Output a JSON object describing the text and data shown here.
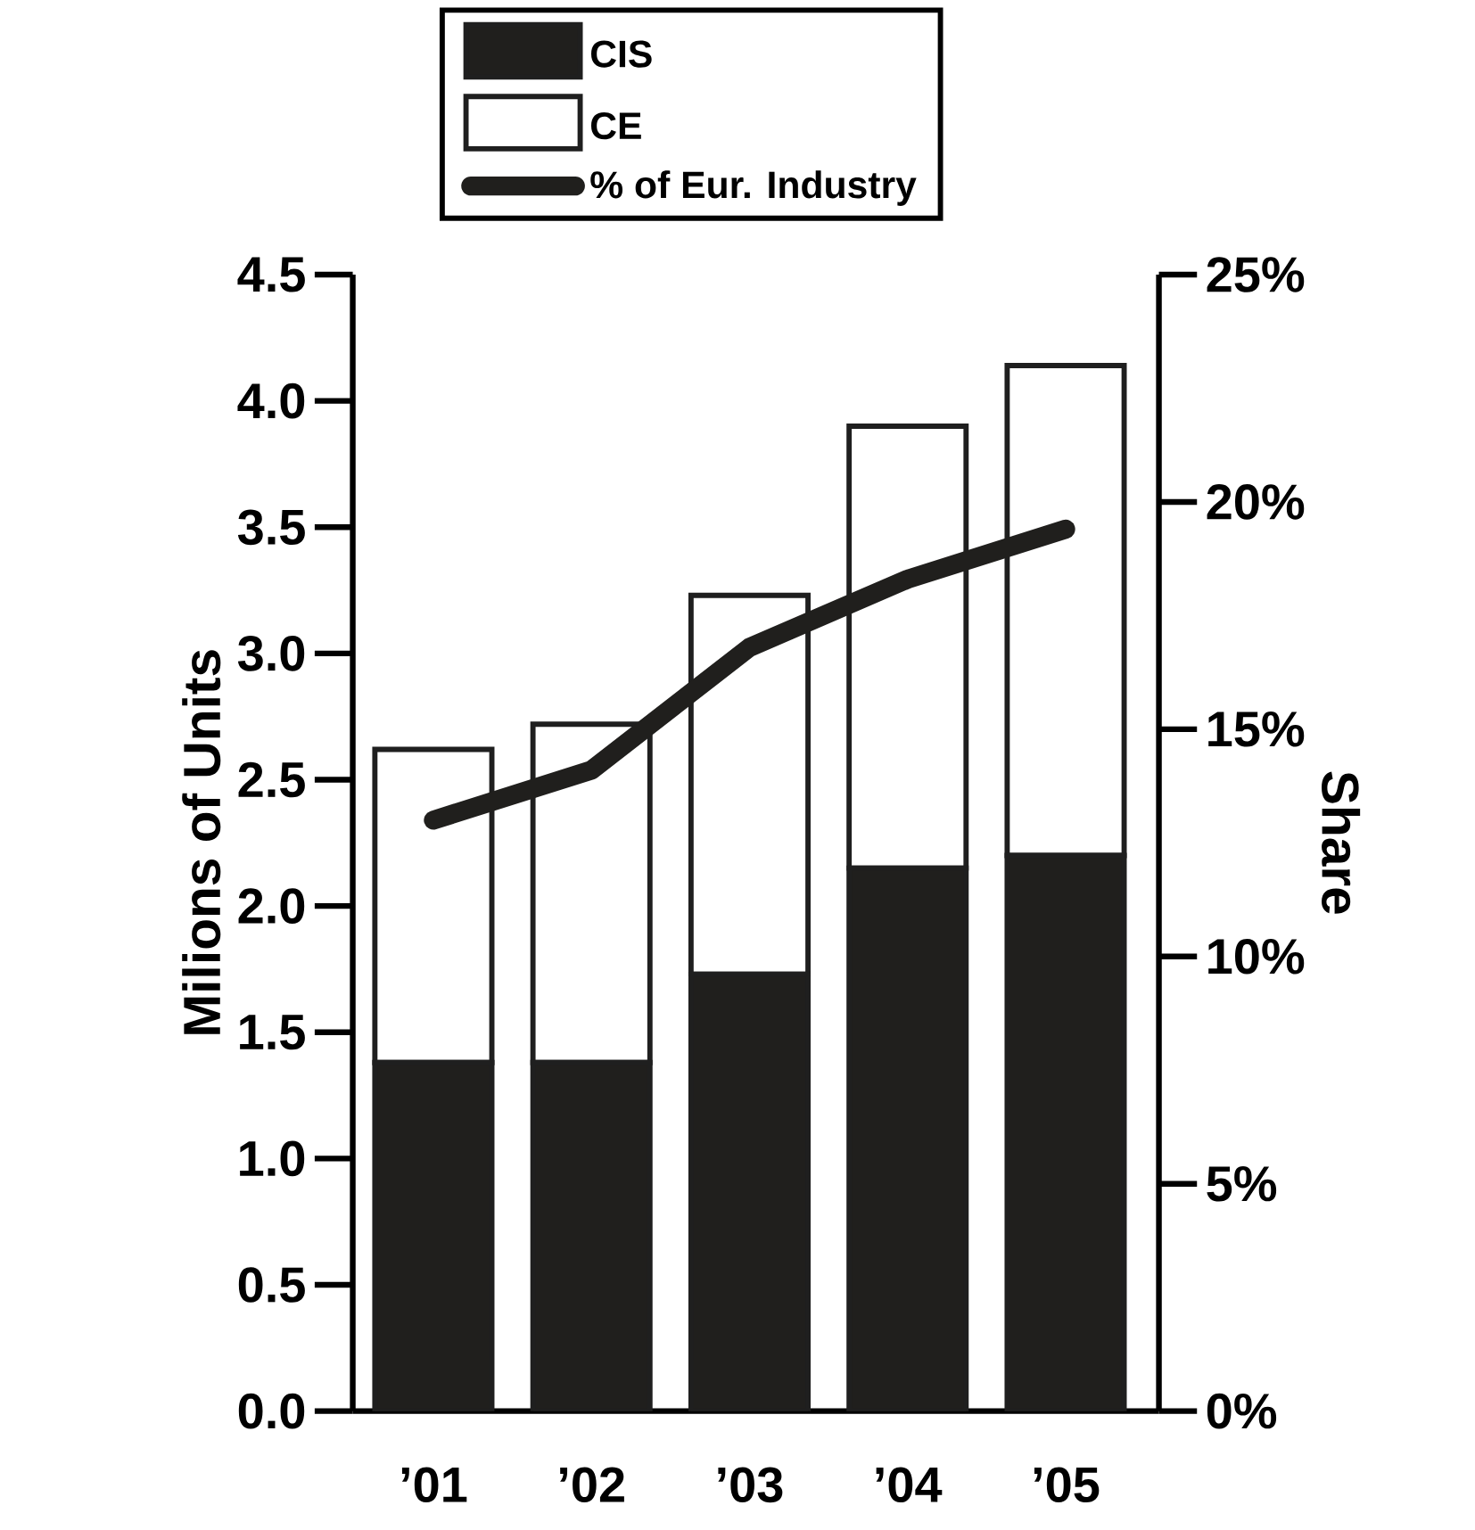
{
  "chart_data": {
    "type": "bar",
    "stacked": true,
    "ylabel": "Milions of Units",
    "y2label": "Share",
    "categories": [
      "’01",
      "’02",
      "’03",
      "’04",
      "’05"
    ],
    "series": [
      {
        "name": "CIS",
        "color": "#201f1d",
        "values": [
          1.38,
          1.38,
          1.73,
          2.15,
          2.2
        ]
      },
      {
        "name": "CE",
        "color": "#ffffff",
        "values": [
          1.24,
          1.34,
          1.5,
          1.75,
          1.94
        ]
      },
      {
        "name": "% of Eur. Industry",
        "type": "line",
        "axis": "y2",
        "color": "#201f1d",
        "values": [
          13.0,
          14.1,
          16.8,
          18.3,
          19.4
        ]
      }
    ],
    "ylim": [
      0,
      4.5
    ],
    "yticks": [
      {
        "value": 0,
        "label": "0.0"
      },
      {
        "value": 0.5,
        "label": "0.5"
      },
      {
        "value": 1,
        "label": "1.0"
      },
      {
        "value": 1.5,
        "label": "1.5"
      },
      {
        "value": 2,
        "label": "2.0"
      },
      {
        "value": 2.5,
        "label": "2.5"
      },
      {
        "value": 3,
        "label": "3.0"
      },
      {
        "value": 3.5,
        "label": "3.5"
      },
      {
        "value": 4,
        "label": "4.0"
      },
      {
        "value": 4.5,
        "label": "4.5"
      }
    ],
    "y2lim": [
      0,
      25
    ],
    "y2ticks": [
      {
        "value": 0,
        "label": "0%"
      },
      {
        "value": 5,
        "label": "5%"
      },
      {
        "value": 10,
        "label": "10%"
      },
      {
        "value": 15,
        "label": "15%"
      },
      {
        "value": 20,
        "label": "20%"
      },
      {
        "value": 25,
        "label": "25%"
      }
    ],
    "legend": "top"
  }
}
